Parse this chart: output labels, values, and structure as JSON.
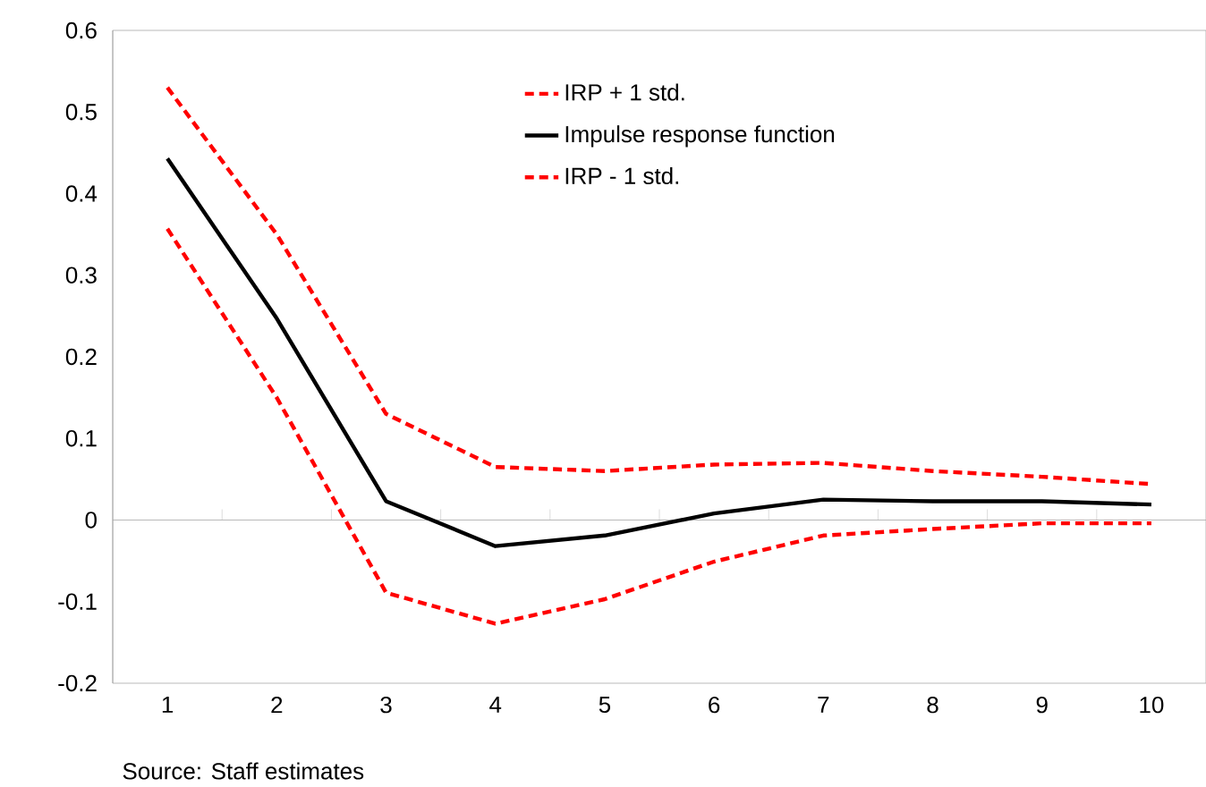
{
  "chart_data": {
    "type": "line",
    "categories": [
      "1",
      "2",
      "3",
      "4",
      "5",
      "6",
      "7",
      "8",
      "9",
      "10"
    ],
    "series": [
      {
        "name": "IRP + 1 std.",
        "color": "#ff0000",
        "line_style": "dashed",
        "values": [
          0.53,
          0.35,
          0.13,
          0.065,
          0.06,
          0.068,
          0.07,
          0.06,
          0.053,
          0.044
        ]
      },
      {
        "name": "Impulse response function",
        "color": "#000000",
        "line_style": "solid",
        "values": [
          0.443,
          0.247,
          0.023,
          -0.032,
          -0.019,
          0.008,
          0.025,
          0.023,
          0.023,
          0.019
        ]
      },
      {
        "name": "IRP - 1 std.",
        "color": "#ff0000",
        "line_style": "dashed",
        "values": [
          0.357,
          0.15,
          -0.089,
          -0.127,
          -0.097,
          -0.051,
          -0.019,
          -0.011,
          -0.004,
          -0.004
        ]
      }
    ],
    "ylim": [
      -0.2,
      0.6
    ],
    "yticks": [
      -0.2,
      -0.1,
      0,
      0.1,
      0.2,
      0.3,
      0.4,
      0.5,
      0.6
    ],
    "legend": "top right",
    "marker": "none",
    "annotations": [
      "Source: Staff estimates"
    ]
  }
}
